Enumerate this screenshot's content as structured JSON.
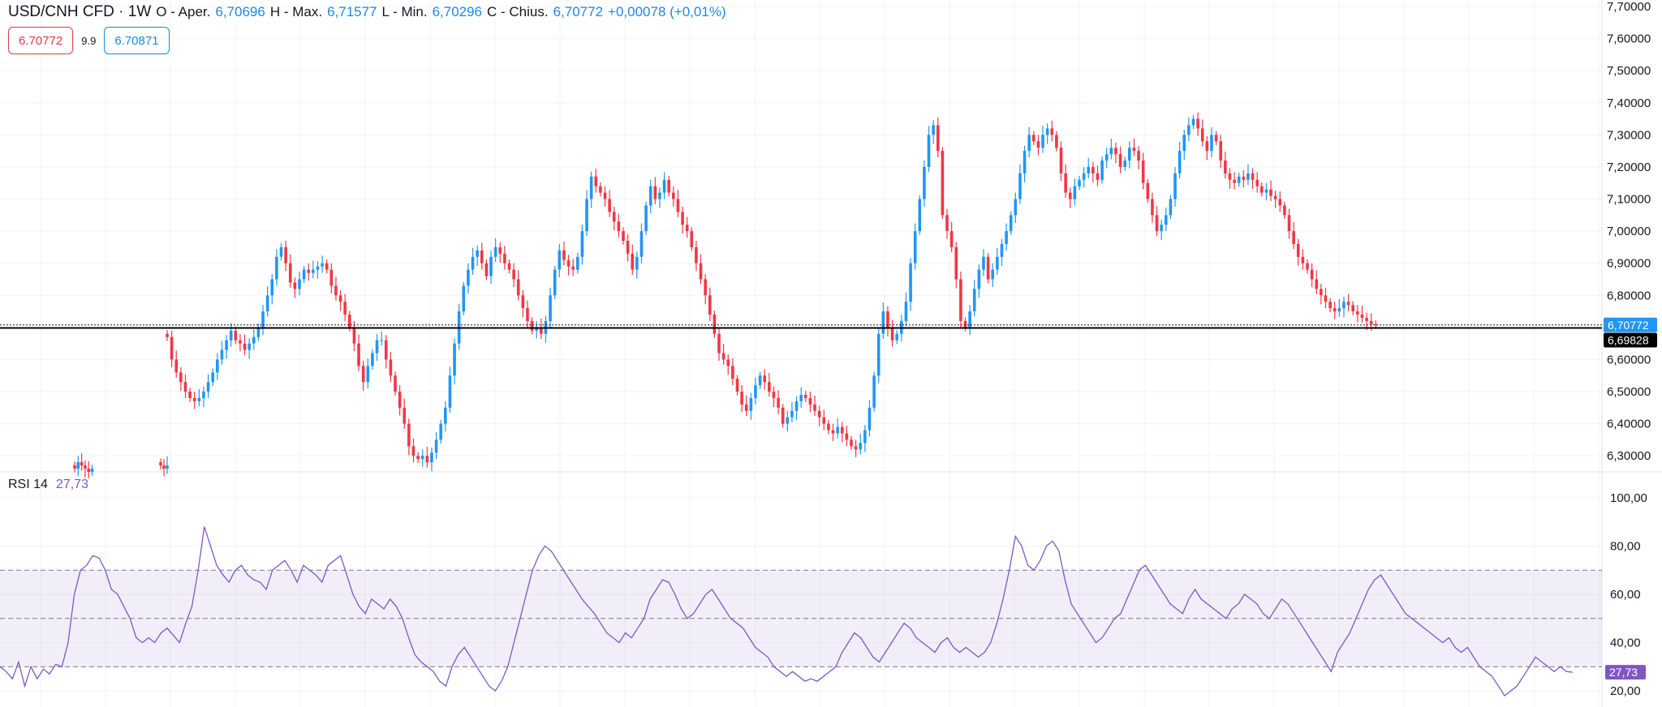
{
  "header": {
    "symbol": "USD/CNH CFD · 1W",
    "open_label": "O - Aper.",
    "open": "6,70696",
    "high_label": "H - Max.",
    "high": "6,71577",
    "low_label": "L - Min.",
    "low": "6,70296",
    "close_label": "C - Chius.",
    "close": "6,70772",
    "change": "+0,00078 (+0,01%)"
  },
  "trade": {
    "sell": "6.70772",
    "spread": "9.9",
    "buy": "6.70871"
  },
  "rsi": {
    "label": "RSI 14",
    "value": "27,73"
  },
  "colors": {
    "up": "#2196f3",
    "down": "#f23645",
    "rsi": "#7e57c2",
    "grid": "#f0f3fa"
  },
  "chart_data": [
    {
      "type": "candlestick",
      "title": "USD/CNH CFD · 1W",
      "ylim": [
        6.25,
        7.7
      ],
      "y_ticks": [
        "7,70000",
        "7,60000",
        "7,50000",
        "7,40000",
        "7,30000",
        "7,20000",
        "7,10000",
        "7,00000",
        "6,90000",
        "6,80000",
        "6,60000",
        "6,50000",
        "6,40000",
        "6,30000"
      ],
      "last_price": "6,70772",
      "last_price_value": 6.70772,
      "hline_label": "6,69828",
      "hline_value": 6.69828,
      "series": [
        {
          "name": "",
          "values": [
            6.26,
            6.28,
            6.27,
            6.26,
            6.25,
            6.26
          ]
        },
        {
          "name": "",
          "values": [
            6.27,
            6.26,
            6.27
          ]
        },
        {
          "name": "",
          "values": [
            6.67,
            6.6,
            6.56,
            6.53,
            6.5,
            6.48,
            6.47,
            6.48,
            6.5,
            6.53,
            6.56,
            6.6,
            6.63,
            6.66,
            6.69,
            6.66,
            6.65,
            6.63,
            6.65,
            6.67,
            6.7,
            6.75,
            6.8,
            6.85,
            6.92,
            6.95,
            6.9,
            6.84,
            6.82,
            6.85,
            6.88,
            6.87,
            6.88,
            6.89,
            6.9,
            6.88,
            6.83,
            6.8,
            6.78,
            6.74,
            6.7,
            6.65,
            6.58,
            6.53,
            6.58,
            6.62,
            6.66,
            6.66,
            6.6,
            6.55,
            6.5,
            6.45,
            6.4,
            6.33,
            6.3,
            6.29,
            6.3,
            6.28,
            6.31,
            6.35,
            6.4,
            6.45,
            6.55,
            6.65,
            6.75,
            6.83,
            6.88,
            6.92,
            6.94,
            6.9,
            6.86,
            6.92,
            6.95,
            6.93,
            6.9,
            6.88,
            6.85,
            6.8,
            6.76,
            6.72,
            6.69,
            6.7,
            6.68,
            6.72,
            6.8,
            6.88,
            6.94,
            6.91,
            6.89,
            6.88,
            6.92,
            7.0,
            7.1,
            7.17,
            7.14,
            7.12,
            7.1,
            7.06,
            7.03,
            7.0,
            6.97,
            6.93,
            6.88,
            6.92,
            7.0,
            7.08,
            7.14,
            7.1,
            7.12,
            7.16,
            7.12,
            7.1,
            7.06,
            7.02,
            7.0,
            6.95,
            6.9,
            6.85,
            6.8,
            6.74,
            6.68,
            6.62,
            6.6,
            6.58,
            6.54,
            6.5,
            6.46,
            6.44,
            6.48,
            6.52,
            6.55,
            6.53,
            6.5,
            6.48,
            6.45,
            6.4,
            6.42,
            6.44,
            6.47,
            6.49,
            6.48,
            6.46,
            6.44,
            6.42,
            6.4,
            6.38,
            6.37,
            6.39,
            6.37,
            6.35,
            6.33,
            6.32,
            6.34,
            6.38,
            6.45,
            6.55,
            6.68,
            6.75,
            6.7,
            6.66,
            6.68,
            6.72,
            6.78,
            6.9,
            7.0,
            7.1,
            7.2,
            7.3,
            7.33,
            7.25,
            7.05,
            7.0,
            6.95,
            6.85,
            6.72,
            6.7,
            6.75,
            6.82,
            6.88,
            6.92,
            6.85,
            6.88,
            6.92,
            6.96,
            7.0,
            7.05,
            7.1,
            7.18,
            7.25,
            7.3,
            7.28,
            7.26,
            7.3,
            7.32,
            7.3,
            7.26,
            7.18,
            7.12,
            7.1,
            7.14,
            7.16,
            7.18,
            7.2,
            7.18,
            7.16,
            7.22,
            7.24,
            7.26,
            7.24,
            7.2,
            7.22,
            7.26,
            7.25,
            7.22,
            7.15,
            7.1,
            7.05,
            7.0,
            7.02,
            7.05,
            7.1,
            7.18,
            7.25,
            7.3,
            7.33,
            7.35,
            7.32,
            7.28,
            7.25,
            7.3,
            7.28,
            7.22,
            7.18,
            7.16,
            7.15,
            7.17,
            7.16,
            7.18,
            7.16,
            7.14,
            7.12,
            7.13,
            7.11,
            7.1,
            7.08,
            7.05,
            7.0,
            6.96,
            6.92,
            6.9,
            6.88,
            6.85,
            6.82,
            6.8,
            6.78,
            6.76,
            6.75,
            6.76,
            6.78,
            6.77,
            6.75,
            6.74,
            6.73,
            6.72,
            6.71,
            6.707
          ]
        }
      ]
    },
    {
      "type": "line",
      "title": "RSI 14",
      "ylim": [
        14,
        108
      ],
      "y_ticks": [
        "100,00",
        "80,00",
        "60,00",
        "40,00",
        "20,00"
      ],
      "bands": [
        30,
        50,
        70
      ],
      "last_value": "27,73",
      "last_value_num": 27.73,
      "series": [
        {
          "name": "RSI 14",
          "values": [
            30,
            28,
            25,
            32,
            22,
            30,
            25,
            29,
            27,
            31,
            30,
            40,
            60,
            70,
            72,
            76,
            75,
            70,
            62,
            60,
            55,
            50,
            42,
            40,
            42,
            40,
            44,
            46,
            43,
            40,
            48,
            55,
            70,
            88,
            80,
            72,
            68,
            65,
            70,
            72,
            68,
            66,
            65,
            62,
            70,
            72,
            74,
            70,
            65,
            72,
            70,
            68,
            65,
            72,
            74,
            76,
            68,
            60,
            55,
            52,
            58,
            56,
            54,
            58,
            55,
            50,
            42,
            35,
            32,
            30,
            28,
            24,
            22,
            30,
            35,
            38,
            34,
            30,
            26,
            22,
            20,
            24,
            30,
            40,
            50,
            60,
            70,
            76,
            80,
            78,
            74,
            70,
            66,
            62,
            58,
            55,
            52,
            48,
            44,
            42,
            40,
            44,
            42,
            46,
            50,
            58,
            62,
            66,
            65,
            60,
            54,
            50,
            52,
            56,
            60,
            62,
            58,
            54,
            50,
            48,
            46,
            42,
            38,
            36,
            34,
            30,
            28,
            26,
            28,
            26,
            24,
            25,
            24,
            26,
            28,
            30,
            36,
            40,
            44,
            42,
            38,
            34,
            32,
            36,
            40,
            44,
            48,
            46,
            42,
            40,
            38,
            36,
            40,
            42,
            38,
            36,
            38,
            36,
            34,
            36,
            40,
            48,
            58,
            70,
            84,
            80,
            72,
            70,
            74,
            80,
            82,
            78,
            66,
            56,
            52,
            48,
            44,
            40,
            42,
            46,
            50,
            52,
            58,
            64,
            70,
            72,
            68,
            64,
            60,
            56,
            54,
            52,
            58,
            62,
            58,
            56,
            54,
            52,
            50,
            54,
            56,
            60,
            58,
            56,
            52,
            50,
            54,
            58,
            56,
            52,
            48,
            44,
            40,
            36,
            32,
            28,
            36,
            40,
            44,
            50,
            56,
            62,
            66,
            68,
            64,
            60,
            56,
            52,
            50,
            48,
            46,
            44,
            42,
            40,
            42,
            38,
            36,
            38,
            34,
            30,
            28,
            26,
            22,
            18,
            20,
            22,
            26,
            30,
            34,
            32,
            30,
            28,
            30,
            28,
            27.73
          ]
        }
      ]
    }
  ]
}
